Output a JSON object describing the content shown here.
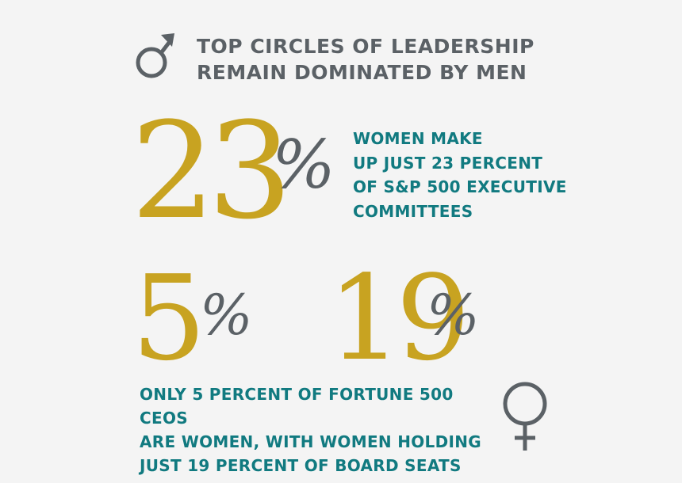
{
  "header": {
    "icon": "male-symbol-icon",
    "title_line1": "TOP CIRCLES OF LEADERSHIP",
    "title_line2": "REMAIN DOMINATED BY MEN"
  },
  "stat_executive": {
    "value": "23",
    "unit": "%",
    "desc_line1": "WOMEN MAKE",
    "desc_line2": "UP JUST 23 PERCENT",
    "desc_line3": "OF S&P 500 EXECUTIVE",
    "desc_line4": "COMMITTEES"
  },
  "stat_ceo": {
    "value": "5",
    "unit": "%"
  },
  "stat_board": {
    "value": "19",
    "unit": "%"
  },
  "footer": {
    "icon": "female-symbol-icon",
    "desc_line1": "ONLY 5 PERCENT OF FORTUNE 500 CEOS",
    "desc_line2": "ARE WOMEN, WITH WOMEN HOLDING",
    "desc_line3": "JUST 19 PERCENT OF BOARD SEATS"
  },
  "colors": {
    "gold": "#c8a321",
    "gray": "#5b6166",
    "teal": "#117a80",
    "background": "#f4f4f4"
  }
}
